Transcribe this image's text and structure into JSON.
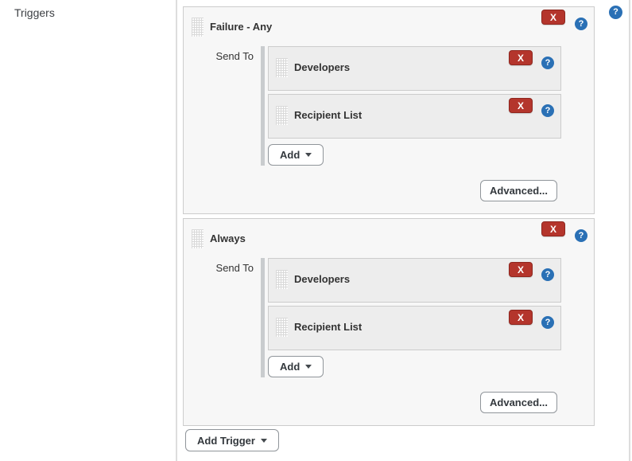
{
  "colors": {
    "danger": "#b4352c",
    "danger_border": "#8f271f",
    "help": "#2a70b5"
  },
  "icons": {
    "delete": "X",
    "help": "?"
  },
  "section": {
    "label": "Triggers"
  },
  "triggers": [
    {
      "title": "Failure - Any",
      "send_to_label": "Send To",
      "recipients": [
        {
          "title": "Developers"
        },
        {
          "title": "Recipient List"
        }
      ],
      "add_label": "Add",
      "advanced_label": "Advanced..."
    },
    {
      "title": "Always",
      "send_to_label": "Send To",
      "recipients": [
        {
          "title": "Developers"
        },
        {
          "title": "Recipient List"
        }
      ],
      "add_label": "Add",
      "advanced_label": "Advanced..."
    }
  ],
  "add_trigger_label": "Add Trigger"
}
